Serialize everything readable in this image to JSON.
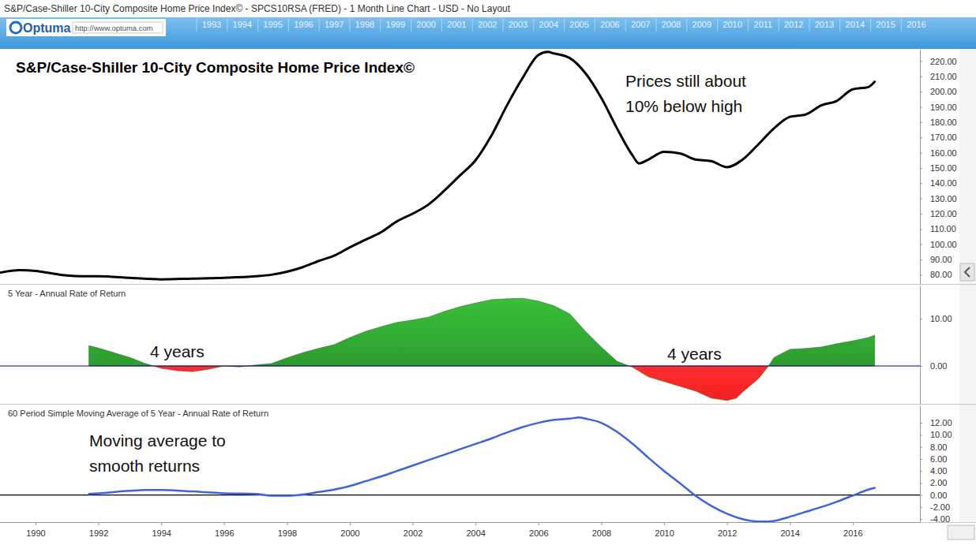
{
  "header": {
    "window_title": "S&P/Case-Shiller 10-City Composite Home Price Index© - SPCS10RSA (FRED) - 1 Month Line Chart - USD - No Layout",
    "logo": "Optuma",
    "url": "http://www.optuma.com",
    "ruler": [
      1993,
      1994,
      1995,
      1996,
      1997,
      1998,
      1999,
      2000,
      2001,
      2002,
      2003,
      2004,
      2005,
      2006,
      2007,
      2008,
      2009,
      2010,
      2011,
      2012,
      2013,
      2014,
      2015,
      2016
    ]
  },
  "chart_data": [
    {
      "type": "line",
      "title": "S&P/Case-Shiller 10-City Composite Home Price Index©",
      "annotations": [
        {
          "lines": [
            "Prices still about",
            "10% below high"
          ]
        }
      ],
      "x": [
        1988.9,
        1989.5,
        1990,
        1990.5,
        1991,
        1991.5,
        1992,
        1993,
        1994,
        1995,
        1996,
        1997,
        1997.5,
        1998,
        1998.5,
        1999,
        1999.5,
        2000,
        2000.5,
        2001,
        2001.5,
        2002,
        2002.5,
        2003,
        2003.5,
        2004,
        2004.5,
        2005,
        2005.5,
        2006,
        2006.3,
        2006.5,
        2007,
        2007.5,
        2008,
        2008.5,
        2009,
        2009.2,
        2009.5,
        2010,
        2010.5,
        2011,
        2011.5,
        2012,
        2012.5,
        2013,
        2013.5,
        2014,
        2014.5,
        2015,
        2015.5,
        2016,
        2016.5,
        2016.7
      ],
      "series": [
        {
          "color": "#000000",
          "values": [
            81.5,
            83,
            82.5,
            81,
            79.5,
            79,
            79,
            78,
            77,
            77.5,
            78,
            79,
            80,
            82,
            85,
            89,
            92.5,
            98,
            103,
            108,
            115,
            120,
            126,
            135,
            145,
            155,
            171,
            191,
            209,
            224,
            226,
            225,
            222,
            212,
            196,
            176,
            158,
            153,
            155.5,
            160.5,
            159.5,
            155.5,
            154.5,
            150.5,
            155.5,
            165.5,
            176,
            183.5,
            185,
            191,
            194,
            201.5,
            203,
            206.5
          ]
        }
      ],
      "xlim": [
        1988.87,
        2018.14
      ],
      "ylim": [
        74,
        228
      ],
      "yticks": [
        {
          "value": 80,
          "label": "80.00"
        },
        {
          "value": 90,
          "label": "90.00"
        },
        {
          "value": 100,
          "label": "100.00"
        },
        {
          "value": 110,
          "label": "110.00"
        },
        {
          "value": 120,
          "label": "120.00"
        },
        {
          "value": 130,
          "label": "130.00"
        },
        {
          "value": 140,
          "label": "140.00"
        },
        {
          "value": 150,
          "label": "150.00"
        },
        {
          "value": 160,
          "label": "160.00"
        },
        {
          "value": 170,
          "label": "170.00"
        },
        {
          "value": 180,
          "label": "180.00"
        },
        {
          "value": 190,
          "label": "190.00"
        },
        {
          "value": 200,
          "label": "200.00"
        },
        {
          "value": 210,
          "label": "210.00"
        },
        {
          "value": 220,
          "label": "220.00"
        }
      ],
      "tick_labels": "y"
    },
    {
      "type": "area",
      "title": "5 Year - Annual Rate of Return",
      "annotations": [
        {
          "lines": [
            "4 years"
          ]
        },
        {
          "lines": [
            "4 years"
          ]
        }
      ],
      "x": [
        1991.7,
        1992,
        1992.5,
        1993,
        1993.5,
        1994,
        1994.5,
        1995,
        1995.5,
        1996,
        1996.5,
        1997,
        1997.5,
        1998,
        1998.5,
        1999,
        1999.5,
        2000,
        2000.5,
        2001,
        2001.5,
        2002,
        2002.5,
        2003,
        2003.5,
        2004,
        2004.5,
        2005,
        2005.5,
        2006,
        2006.5,
        2007,
        2007.5,
        2008,
        2008.5,
        2009,
        2009.5,
        2010,
        2010.5,
        2011,
        2011.5,
        2012,
        2012.3,
        2012.5,
        2013,
        2013.3,
        2013.5,
        2014,
        2014.5,
        2015,
        2015.5,
        2016,
        2016.5,
        2016.7
      ],
      "series": [
        {
          "colors": [
            "#2e9b2e",
            "#f01e1e"
          ],
          "values": [
            4.3,
            3.8,
            2.8,
            1.8,
            0.5,
            -0.5,
            -1,
            -1.2,
            -0.7,
            0,
            -0.2,
            0.2,
            0.5,
            1.7,
            2.8,
            3.7,
            4.5,
            6,
            7.3,
            8.3,
            9.2,
            9.7,
            10.3,
            11.5,
            12.5,
            13.3,
            14,
            14.2,
            14.3,
            13.7,
            12.7,
            11,
            7.3,
            4,
            1,
            -0.3,
            -2.3,
            -3.3,
            -4.3,
            -5.3,
            -6.8,
            -7.3,
            -6.8,
            -5.5,
            -2.7,
            -0.2,
            1.8,
            3.5,
            3.7,
            4,
            4.7,
            5.3,
            6,
            6.5
          ]
        }
      ],
      "baseline": 0,
      "xlim": [
        1988.87,
        2018.14
      ],
      "ylim": [
        -8,
        17
      ],
      "yticks": [
        {
          "value": 0,
          "label": "0.00"
        },
        {
          "value": 10,
          "label": "10.00"
        }
      ],
      "tick_labels": "y"
    },
    {
      "type": "line",
      "title": "60 Period Simple Moving Average of 5 Year - Annual Rate of Return",
      "annotations": [
        {
          "lines": [
            "Moving average to",
            "smooth returns"
          ]
        }
      ],
      "x": [
        1991.7,
        1992,
        1993,
        1993.5,
        1994,
        1995,
        1996,
        1997,
        1997.5,
        1998,
        1998.5,
        1999,
        1999.5,
        2000,
        2000.5,
        2001,
        2001.5,
        2002,
        2002.5,
        2003,
        2003.5,
        2004,
        2004.5,
        2005,
        2005.5,
        2006,
        2006.5,
        2007,
        2007.3,
        2007.5,
        2008,
        2008.5,
        2009,
        2009.5,
        2010,
        2010.5,
        2011,
        2011.5,
        2012,
        2012.5,
        2013,
        2013.3,
        2013.5,
        2014,
        2014.5,
        2015,
        2015.5,
        2016,
        2016.5,
        2016.7
      ],
      "series": [
        {
          "color": "#3f63dc",
          "values": [
            0.2,
            0.3,
            0.7,
            0.85,
            0.85,
            0.6,
            0.3,
            0.2,
            -0.1,
            -0.1,
            0.1,
            0.5,
            0.9,
            1.5,
            2.3,
            3.1,
            4,
            4.9,
            5.8,
            6.7,
            7.6,
            8.5,
            9.4,
            10.4,
            11.3,
            12,
            12.5,
            12.7,
            12.9,
            12.7,
            12,
            10.5,
            8.5,
            6.2,
            4,
            2,
            -0.1,
            -1.8,
            -3.1,
            -4,
            -4.4,
            -4.4,
            -4.3,
            -3.6,
            -2.8,
            -2,
            -1.1,
            -0.1,
            0.9,
            1.2
          ]
        }
      ],
      "baseline": 0,
      "xlim": [
        1988.87,
        2018.14
      ],
      "ylim": [
        -4.5,
        14.9
      ],
      "xticks": [
        1990,
        1992,
        1994,
        1996,
        1998,
        2000,
        2002,
        2004,
        2006,
        2008,
        2010,
        2012,
        2014,
        2016
      ],
      "yticks": [
        {
          "value": -4,
          "label": "-4.00"
        },
        {
          "value": -2,
          "label": "-2.00"
        },
        {
          "value": 0,
          "label": "0.00"
        },
        {
          "value": 2,
          "label": "2.00"
        },
        {
          "value": 4,
          "label": "4.00"
        },
        {
          "value": 6,
          "label": "6.00"
        },
        {
          "value": 8,
          "label": "8.00"
        },
        {
          "value": 10,
          "label": "10.00"
        },
        {
          "value": 12,
          "label": "12.00"
        }
      ]
    }
  ]
}
